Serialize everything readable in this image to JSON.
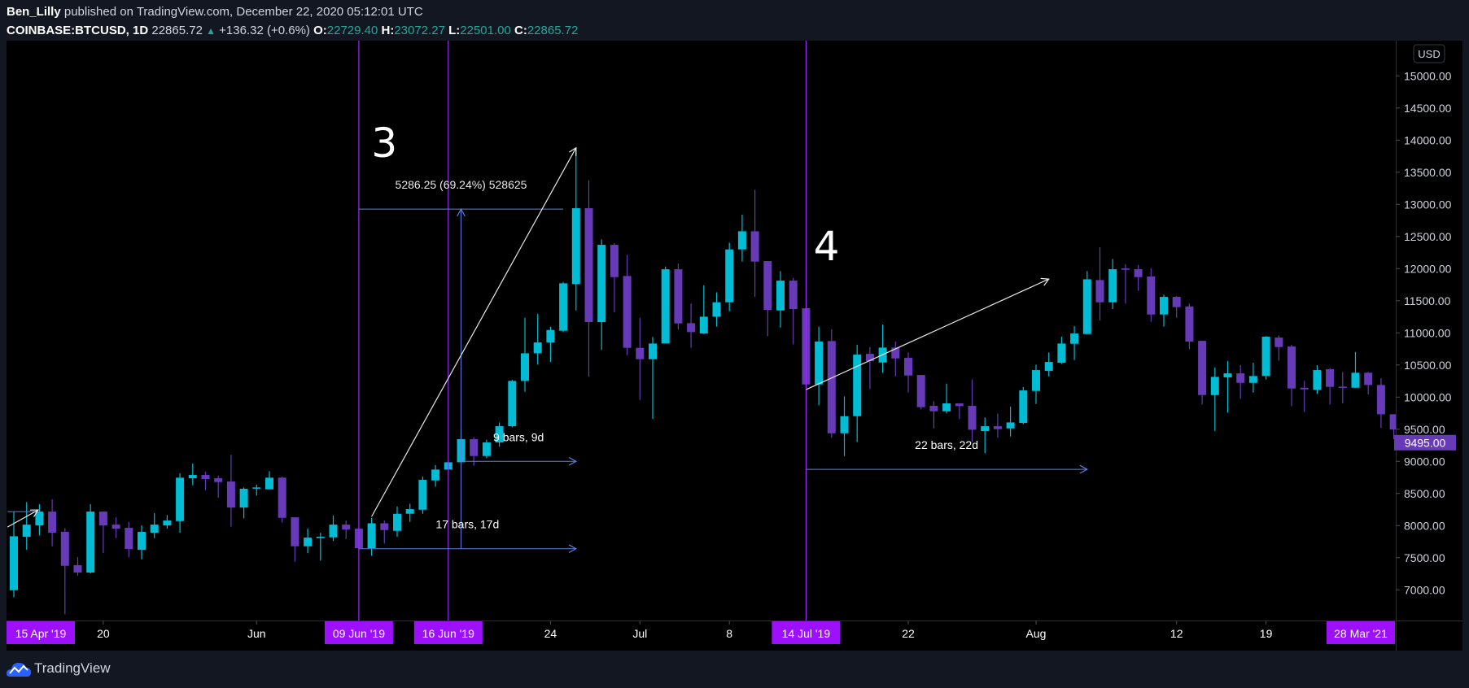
{
  "header": {
    "author": "Ben_Lilly",
    "published": "published on TradingView.com, December 22, 2020 05:12:01 UTC",
    "symbol": "COINBASE:BTCUSD, 1D",
    "last": "22865.72",
    "change": "+136.32 (+0.6%)",
    "o_label": "O:",
    "o": "22729.40",
    "h_label": "H:",
    "h": "23072.27",
    "l_label": "L:",
    "l": "22501.00",
    "c_label": "C:",
    "c": "22865.72"
  },
  "footer": {
    "brand": "TradingView"
  },
  "colors": {
    "up": "#00bcd4",
    "down": "#673ab7",
    "vline": "#9c27ff",
    "label_box": "#9c10fc",
    "tool_blue": "#5b7fe0",
    "arrow_white": "#e8e8e8",
    "change_up": "#26a69a",
    "plot_bg": "#000000",
    "page_bg": "#131722"
  },
  "chart_data": {
    "type": "candlestick",
    "currency_label": "USD",
    "ylim": [
      6600,
      15300
    ],
    "yticks": [
      "15000.00",
      "14500.00",
      "14000.00",
      "13500.00",
      "13000.00",
      "12500.00",
      "12000.00",
      "11500.00",
      "11000.00",
      "10500.00",
      "10000.00",
      "9500.00",
      "9000.00",
      "8500.00",
      "8000.00",
      "7500.00",
      "7000.00"
    ],
    "last_price_label": "9495.00",
    "x_labels": [
      {
        "text": "15 Apr '19",
        "bar": 2.1,
        "highlight": true
      },
      {
        "text": "20",
        "bar": 7
      },
      {
        "text": "Jun",
        "bar": 19
      },
      {
        "text": "09 Jun '19",
        "bar": 27,
        "highlight": true
      },
      {
        "text": "16 Jun '19",
        "bar": 34,
        "highlight": true
      },
      {
        "text": "24",
        "bar": 42
      },
      {
        "text": "Jul",
        "bar": 49
      },
      {
        "text": "8",
        "bar": 56
      },
      {
        "text": "14 Jul '19",
        "bar": 62,
        "highlight": true
      },
      {
        "text": "22",
        "bar": 70
      },
      {
        "text": "Aug",
        "bar": 80
      },
      {
        "text": "12",
        "bar": 91
      },
      {
        "text": "19",
        "bar": 98
      },
      {
        "text": "28 Mar '21",
        "bar": 106,
        "highlight": true
      }
    ],
    "ohlc_columns": [
      "open",
      "high",
      "low",
      "close"
    ],
    "candles": [
      [
        6994,
        8214,
        6885,
        7834
      ],
      [
        7826,
        8366,
        7623,
        8015
      ],
      [
        8003,
        8332,
        7847,
        8218
      ],
      [
        8218,
        8408,
        7678,
        7889
      ],
      [
        7902,
        7961,
        6620,
        7374
      ],
      [
        7383,
        7509,
        7222,
        7269
      ],
      [
        7269,
        8332,
        7256,
        8218
      ],
      [
        8218,
        8218,
        7572,
        8003
      ],
      [
        8015,
        8129,
        7805,
        7952
      ],
      [
        7965,
        8058,
        7509,
        7636
      ],
      [
        7623,
        8003,
        7475,
        7902
      ],
      [
        7889,
        8193,
        7805,
        8015
      ],
      [
        8003,
        8163,
        7952,
        8079
      ],
      [
        8070,
        8813,
        7889,
        8746
      ],
      [
        8737,
        8965,
        8627,
        8788
      ],
      [
        8788,
        8838,
        8551,
        8725
      ],
      [
        8737,
        8775,
        8437,
        8678
      ],
      [
        8686,
        9104,
        7982,
        8281
      ],
      [
        8281,
        8594,
        8113,
        8573
      ],
      [
        8585,
        8636,
        8467,
        8594
      ],
      [
        8564,
        8847,
        8564,
        8746
      ],
      [
        8746,
        8762,
        8045,
        8121
      ],
      [
        8129,
        8129,
        7437,
        7678
      ],
      [
        7678,
        7952,
        7572,
        7813
      ],
      [
        7805,
        7889,
        7454,
        7826
      ],
      [
        7817,
        8155,
        7762,
        8015
      ],
      [
        8015,
        8079,
        7792,
        7940
      ],
      [
        7952,
        7970,
        7640,
        7648
      ],
      [
        7648,
        8121,
        7530,
        8036
      ],
      [
        8036,
        8079,
        7720,
        7931
      ],
      [
        7918,
        8298,
        7825,
        8184
      ],
      [
        8184,
        8340,
        8058,
        8256
      ],
      [
        8247,
        8762,
        8184,
        8712
      ],
      [
        8703,
        8944,
        8606,
        8872
      ],
      [
        8872,
        9007,
        8860,
        8986
      ],
      [
        8986,
        9492,
        8986,
        9345
      ],
      [
        9345,
        9378,
        8931,
        9083
      ],
      [
        9083,
        9336,
        9049,
        9294
      ],
      [
        9294,
        9606,
        9227,
        9547
      ],
      [
        9547,
        10270,
        9530,
        10252
      ],
      [
        10252,
        11235,
        10083,
        10682
      ],
      [
        10682,
        11294,
        10505,
        10851
      ],
      [
        10851,
        11096,
        10547,
        11045
      ],
      [
        11033,
        11792,
        11011,
        11771
      ],
      [
        11759,
        13880,
        11349,
        12940
      ],
      [
        12940,
        13375,
        10315,
        11168
      ],
      [
        11168,
        12455,
        10737,
        12370
      ],
      [
        12370,
        12396,
        11320,
        11868
      ],
      [
        11885,
        12214,
        10653,
        10767
      ],
      [
        10767,
        11235,
        9957,
        10590
      ],
      [
        10590,
        10936,
        9661,
        10834
      ],
      [
        10834,
        12033,
        10834,
        11990
      ],
      [
        11990,
        12079,
        11054,
        11147
      ],
      [
        11151,
        11455,
        10767,
        11012
      ],
      [
        10990,
        11742,
        10982,
        11252
      ],
      [
        11252,
        11632,
        11096,
        11476
      ],
      [
        11476,
        12404,
        11336,
        12299
      ],
      [
        12299,
        12839,
        12109,
        12581
      ],
      [
        12581,
        13227,
        11560,
        12109
      ],
      [
        12117,
        12117,
        10948,
        11357
      ],
      [
        11349,
        11961,
        11083,
        11813
      ],
      [
        11813,
        11856,
        10822,
        11370
      ],
      [
        11383,
        11383,
        10190,
        10197
      ],
      [
        10197,
        11096,
        9872,
        10864
      ],
      [
        10872,
        11054,
        9366,
        9437
      ],
      [
        9437,
        10011,
        9083,
        9703
      ],
      [
        9703,
        10813,
        9302,
        10661
      ],
      [
        10674,
        10779,
        10125,
        10560
      ],
      [
        10539,
        11130,
        10379,
        10771
      ],
      [
        10771,
        10864,
        10324,
        10602
      ],
      [
        10611,
        10695,
        10071,
        10336
      ],
      [
        10345,
        10345,
        9809,
        9843
      ],
      [
        9864,
        9935,
        9513,
        9779
      ],
      [
        9779,
        10210,
        9746,
        9902
      ],
      [
        9902,
        9902,
        9661,
        9860
      ],
      [
        9864,
        10273,
        9302,
        9492
      ],
      [
        9471,
        9682,
        9125,
        9547
      ],
      [
        9547,
        9745,
        9366,
        9501
      ],
      [
        9513,
        9851,
        9387,
        9606
      ],
      [
        9598,
        10155,
        9577,
        10104
      ],
      [
        10096,
        10505,
        9893,
        10421
      ],
      [
        10408,
        10695,
        10324,
        10547
      ],
      [
        10535,
        10940,
        10518,
        10834
      ],
      [
        10830,
        11104,
        10577,
        10990
      ],
      [
        10982,
        11961,
        10982,
        11834
      ],
      [
        11822,
        12332,
        11193,
        11476
      ],
      [
        11476,
        12151,
        11370,
        11991
      ],
      [
        12003,
        12067,
        11455,
        11982
      ],
      [
        11991,
        12054,
        11653,
        11868
      ],
      [
        11877,
        12003,
        11172,
        11286
      ],
      [
        11286,
        11594,
        11096,
        11560
      ],
      [
        11560,
        11569,
        11235,
        11400
      ],
      [
        11412,
        11455,
        10746,
        10864
      ],
      [
        10876,
        10876,
        9885,
        10032
      ],
      [
        10032,
        10463,
        9471,
        10315
      ],
      [
        10307,
        10560,
        9758,
        10370
      ],
      [
        10370,
        10497,
        9977,
        10222
      ],
      [
        10222,
        10535,
        10070,
        10328
      ],
      [
        10328,
        10948,
        10273,
        10940
      ],
      [
        10927,
        10961,
        10568,
        10779
      ],
      [
        10788,
        10813,
        9859,
        10134
      ],
      [
        10146,
        10252,
        9767,
        10121
      ],
      [
        10113,
        10497,
        10049,
        10421
      ],
      [
        10434,
        10450,
        9885,
        10159
      ],
      [
        10163,
        10391,
        9902,
        10146
      ],
      [
        10146,
        10703,
        10146,
        10379
      ],
      [
        10379,
        10391,
        10041,
        10189
      ],
      [
        10189,
        10294,
        9522,
        9733
      ],
      [
        9733,
        9733,
        9345,
        9495
      ]
    ],
    "annotations": {
      "vertical_lines": [
        {
          "bar": 27
        },
        {
          "bar": 34
        },
        {
          "bar": 62
        }
      ],
      "wave_labels": [
        {
          "text": "3",
          "bar": 29,
          "price": 13965
        },
        {
          "text": "4",
          "bar": 63.6,
          "price": 12358
        }
      ],
      "price_measure": {
        "text": "5286.25 (69.24%) 528625",
        "from_bar": 27,
        "to_bar": 43,
        "arrow_bar": 35,
        "from_price": 7640,
        "to_price": 12926
      },
      "date_ranges": [
        {
          "text": "17 bars, 17d",
          "from_bar": 27,
          "to_bar": 44,
          "price": 7640
        },
        {
          "text": "9 bars, 9d",
          "from_bar": 35,
          "to_bar": 44,
          "price": 9000
        },
        {
          "text": "22 bars, 22d",
          "from_bar": 62,
          "to_bar": 84,
          "price": 8876
        }
      ],
      "trend_arrows": [
        {
          "from_bar": 28,
          "from_price": 8140,
          "to_bar": 44,
          "to_price": 13880
        },
        {
          "from_bar": 62,
          "from_price": 10117,
          "to_bar": 81,
          "to_price": 11838
        },
        {
          "from_bar": -0.5,
          "from_price": 7977,
          "to_bar": 1.9,
          "to_price": 8243
        }
      ],
      "small_range_line": {
        "from_bar": -0.5,
        "to_bar": 1.9,
        "price": 8217
      }
    }
  }
}
